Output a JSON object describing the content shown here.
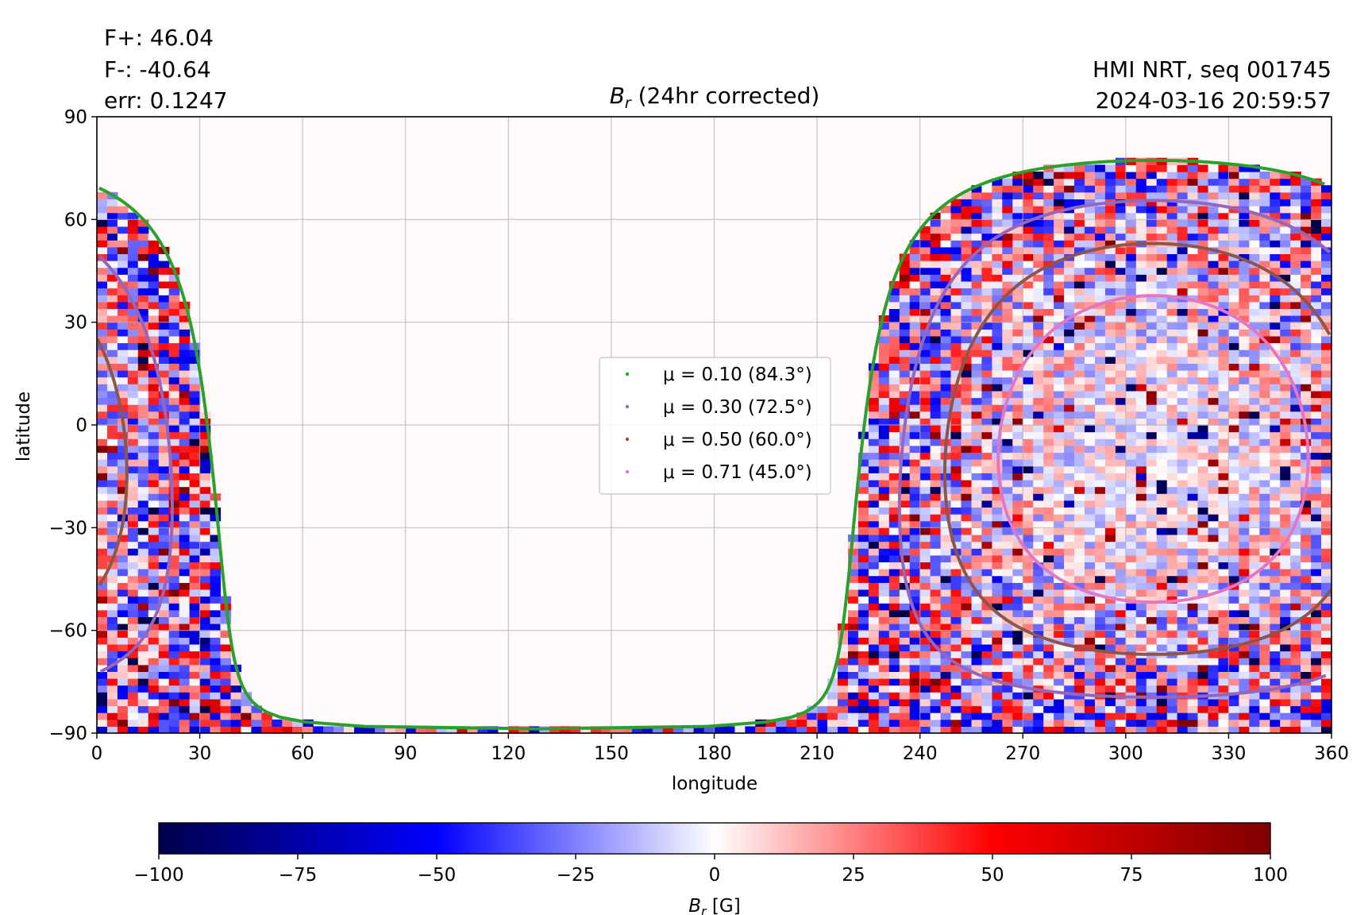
{
  "chart_data": {
    "type": "heatmap",
    "title_symbol": "B",
    "title_subscript": "r",
    "title_suffix": " (24hr corrected)",
    "info_left": [
      "F+: 46.04",
      "F-: -40.64",
      "err: 0.1247"
    ],
    "info_right": [
      "HMI NRT, seq 001745",
      "2024-03-16 20:59:57"
    ],
    "xlabel": "longitude",
    "ylabel": "latitude",
    "xlim": [
      0,
      360
    ],
    "ylim": [
      -90,
      90
    ],
    "xticks": [
      "0",
      "30",
      "60",
      "90",
      "120",
      "150",
      "180",
      "210",
      "240",
      "270",
      "300",
      "330",
      "360"
    ],
    "yticks": [
      "90",
      "60",
      "30",
      "0",
      "−30",
      "−60",
      "−90"
    ],
    "grid": true,
    "disk_center_lon": 308,
    "disk_center_lat": -7,
    "colormap": "seismic",
    "colorbar": {
      "range": [
        -100,
        100
      ],
      "ticks": [
        "−100",
        "−75",
        "−50",
        "−25",
        "0",
        "25",
        "50",
        "75",
        "100"
      ],
      "label_symbol": "B",
      "label_subscript": "r",
      "label_suffix": " [G]"
    },
    "legend_position": "center",
    "series": [
      {
        "name": "μ = 0.10 (84.3°)",
        "mu": 0.1,
        "angle_deg": 84.3,
        "color": "#2ca02c"
      },
      {
        "name": "μ = 0.30 (72.5°)",
        "mu": 0.3,
        "angle_deg": 72.5,
        "color": "#9467bd"
      },
      {
        "name": "μ = 0.50 (60.0°)",
        "mu": 0.5,
        "angle_deg": 60.0,
        "color": "#8c564b"
      },
      {
        "name": "μ = 0.71 (45.0°)",
        "mu": 0.71,
        "angle_deg": 45.0,
        "color": "#e377c2"
      }
    ]
  }
}
